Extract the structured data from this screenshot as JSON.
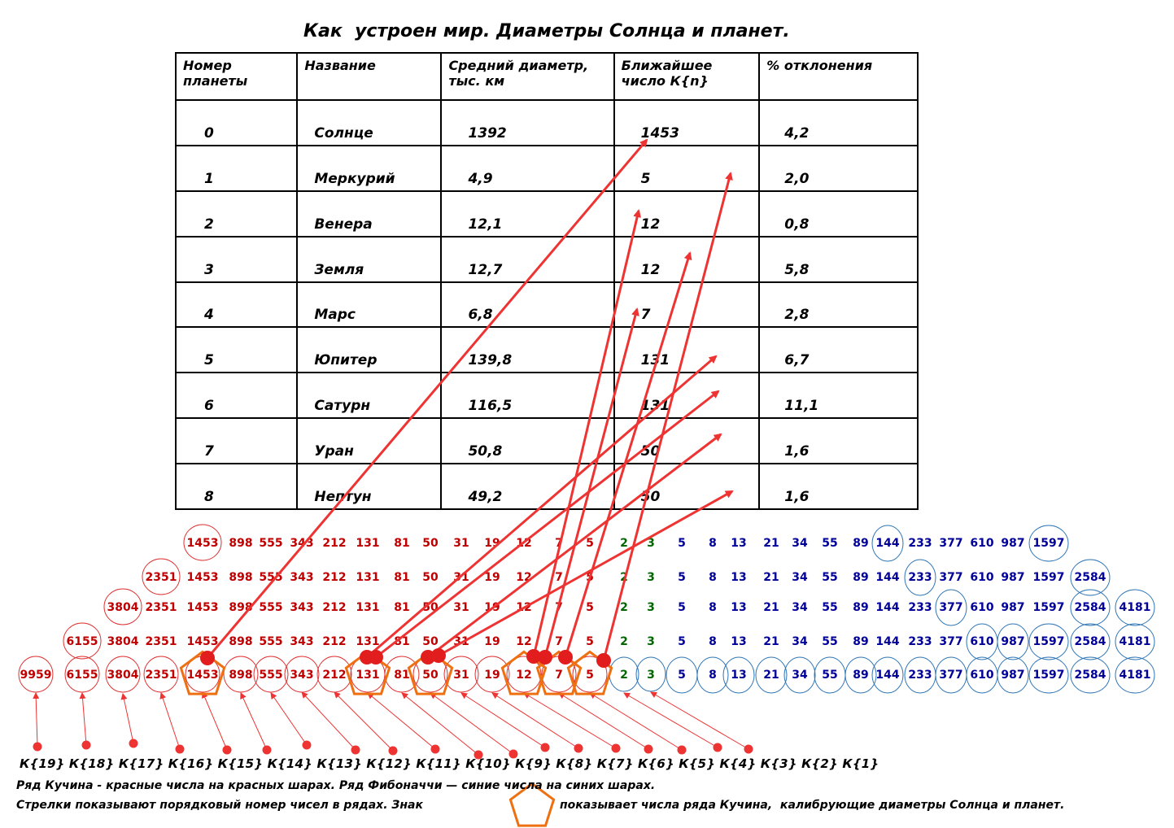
{
  "title": "Как  устроен мир. Диаметры Солнца и планет.",
  "table": {
    "headers": [
      [
        "Номер",
        "планеты"
      ],
      [
        "Название",
        ""
      ],
      [
        "Средний диаметр,",
        "тыс. км"
      ],
      [
        "Ближайшее",
        "число К{n}"
      ],
      [
        "% отклонения",
        ""
      ]
    ],
    "rows": [
      {
        "num": "0",
        "name": "Солнце",
        "diameter": "1392",
        "k": "1453",
        "dev": "4,2"
      },
      {
        "num": "1",
        "name": "Меркурий",
        "diameter": "4,9",
        "k": "5",
        "dev": "2,0"
      },
      {
        "num": "2",
        "name": "Венера",
        "diameter": "12,1",
        "k": "12",
        "dev": "0,8"
      },
      {
        "num": "3",
        "name": "Земля",
        "diameter": "12,7",
        "k": "12",
        "dev": "5,8"
      },
      {
        "num": "4",
        "name": "Марс",
        "diameter": "6,8",
        "k": "7",
        "dev": "2,8"
      },
      {
        "num": "5",
        "name": "Юпитер",
        "diameter": "139,8",
        "k": "131",
        "dev": "6,7"
      },
      {
        "num": "6",
        "name": "Сатурн",
        "diameter": "116,5",
        "k": "131",
        "dev": "11,1"
      },
      {
        "num": "7",
        "name": "Уран",
        "diameter": "50,8",
        "k": "50",
        "dev": "1,6"
      },
      {
        "num": "8",
        "name": "Нептун",
        "diameter": "49,2",
        "k": "50",
        "dev": "1,6"
      }
    ]
  },
  "kuchin_series": [
    "9959",
    "6155",
    "3804",
    "2351",
    "1453",
    "898",
    "555",
    "343",
    "212",
    "131",
    "81",
    "50",
    "31",
    "19",
    "12",
    "7",
    "5"
  ],
  "transition": [
    "2",
    "3"
  ],
  "fibonacci_series": [
    "5",
    "8",
    "13",
    "21",
    "34",
    "55",
    "89",
    "144",
    "233",
    "377",
    "610",
    "987",
    "1597",
    "2584",
    "4181"
  ],
  "k_labels": "К{19} К{18} К{17} К{16} К{15} К{14} К{13} К{12} К{11} К{10} К{9} К{8} К{7} К{6} К{5} К{4} К{3} К{2} К{1}",
  "captions": {
    "line1": "Ряд Кучина - красные числа на красных шарах. Ряд Фибоначчи — синие числа на синих шарах.",
    "line2_before": "Стрелки показывают порядковый номер чисел в рядах. Знак",
    "line2_after": "показывает числа ряда Кучина,  калибрующие диаметры Солнца и планет."
  },
  "colors": {
    "kuchin": "#c00000",
    "fibonacci": "#000099",
    "transition": "#006600",
    "arrow": "#ee3333",
    "pentagon": "#ee7011",
    "fib_circle": "#2e75b6",
    "kuchin_circle": "#e03030"
  }
}
